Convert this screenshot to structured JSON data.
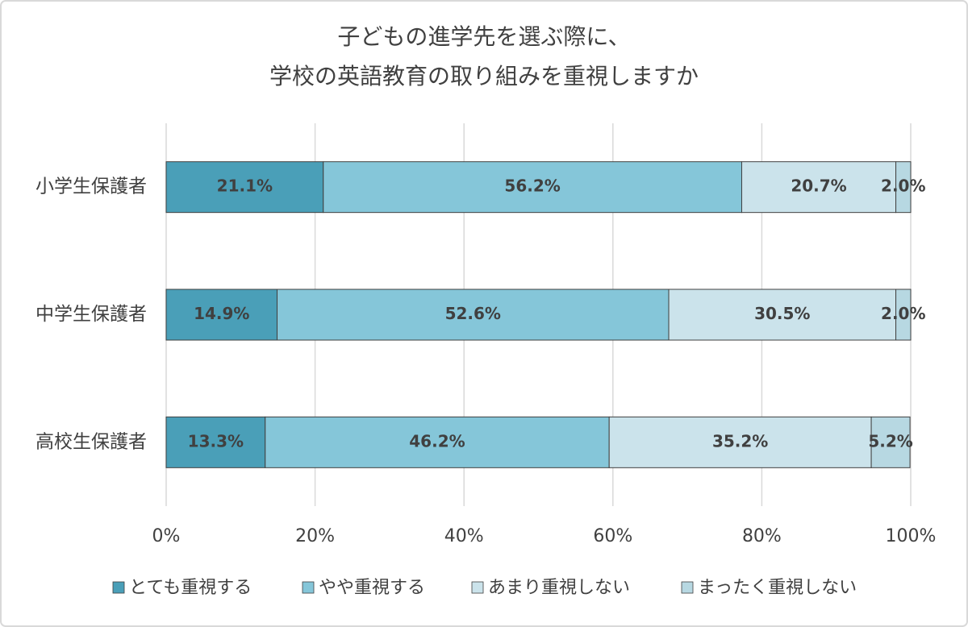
{
  "chart_data": {
    "type": "stacked-barh",
    "title": [
      "子どもの進学先を選ぶ際に、",
      "学校の英語教育の取り組みを重視しますか"
    ],
    "categories": [
      "小学生保護者",
      "中学生保護者",
      "高校生保護者"
    ],
    "series": [
      {
        "name": "とても重視する",
        "color": "#4a9fb8",
        "values": [
          21.1,
          14.9,
          13.3
        ],
        "value_labels": [
          "21.1%",
          "14.9%",
          "13.3%"
        ]
      },
      {
        "name": "やや重視する",
        "color": "#85c6d9",
        "values": [
          56.2,
          52.6,
          46.2
        ],
        "value_labels": [
          "56.2%",
          "52.6%",
          "46.2%"
        ]
      },
      {
        "name": "あまり重視しない",
        "color": "#cbe3eb",
        "values": [
          20.7,
          30.5,
          35.2
        ],
        "value_labels": [
          "20.7%",
          "30.5%",
          "35.2%"
        ]
      },
      {
        "name": "まったく重視しない",
        "color": "#b7d8e2",
        "values": [
          2.0,
          2.0,
          5.2
        ],
        "value_labels": [
          "2.0%",
          "2.0%",
          "5.2%"
        ]
      }
    ],
    "xlim": [
      0,
      100
    ],
    "xticks": [
      {
        "value": 0,
        "label": "0%"
      },
      {
        "value": 20,
        "label": "20%"
      },
      {
        "value": 40,
        "label": "40%"
      },
      {
        "value": 60,
        "label": "60%"
      },
      {
        "value": 80,
        "label": "80%"
      },
      {
        "value": 100,
        "label": "100%"
      }
    ],
    "grid": true,
    "legend": "bottom"
  }
}
